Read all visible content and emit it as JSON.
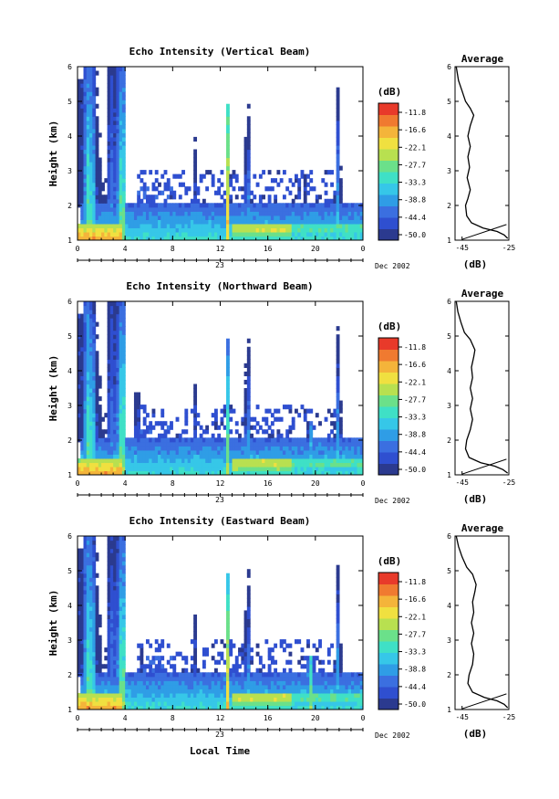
{
  "chart_data": [
    {
      "type": "heatmap",
      "title": "Echo Intensity (Vertical Beam)",
      "xlabel": "",
      "ylabel": "Height (km)",
      "x_ticks": [
        "0",
        "4",
        "8",
        "12",
        "16",
        "20",
        "0"
      ],
      "y_ticks": [
        "1",
        "2",
        "3",
        "4",
        "5",
        "6"
      ],
      "xlim": [
        0,
        24
      ],
      "ylim": [
        1,
        6
      ],
      "date_day": "23",
      "date_label": "Dec 2002",
      "colorbar": {
        "unit": "(dB)",
        "ticks": [
          "-11.8",
          "-16.6",
          "-22.1",
          "-27.7",
          "-33.3",
          "-38.8",
          "-44.4",
          "-50.0"
        ]
      },
      "profile": {
        "title": "Average",
        "xlabel": "(dB)",
        "x_ticks": [
          "-45",
          "-25"
        ],
        "y_ticks": [
          "1",
          "2",
          "3",
          "4",
          "5",
          "6"
        ],
        "xlim": [
          -48,
          -25
        ],
        "points": [
          {
            "x": -25.5,
            "y": 1.05
          },
          {
            "x": -27,
            "y": 1.15
          },
          {
            "x": -30,
            "y": 1.25
          },
          {
            "x": -36,
            "y": 1.35
          },
          {
            "x": -41,
            "y": 1.5
          },
          {
            "x": -43,
            "y": 1.7
          },
          {
            "x": -43.5,
            "y": 2.0
          },
          {
            "x": -42.5,
            "y": 2.2
          },
          {
            "x": -41.5,
            "y": 2.45
          },
          {
            "x": -42.8,
            "y": 2.8
          },
          {
            "x": -41.8,
            "y": 3.1
          },
          {
            "x": -42.5,
            "y": 3.4
          },
          {
            "x": -41.5,
            "y": 3.7
          },
          {
            "x": -42.5,
            "y": 4.0
          },
          {
            "x": -41.5,
            "y": 4.3
          },
          {
            "x": -40.0,
            "y": 4.6
          },
          {
            "x": -41.5,
            "y": 4.8
          },
          {
            "x": -43.5,
            "y": 5.0
          },
          {
            "x": -45,
            "y": 5.3
          },
          {
            "x": -46.5,
            "y": 5.6
          },
          {
            "x": -47.5,
            "y": 6.0
          }
        ]
      }
    },
    {
      "type": "heatmap",
      "title": "Echo Intensity (Northward Beam)",
      "xlabel": "",
      "ylabel": "Height (km)",
      "x_ticks": [
        "0",
        "4",
        "8",
        "12",
        "16",
        "20",
        "0"
      ],
      "y_ticks": [
        "1",
        "2",
        "3",
        "4",
        "5",
        "6"
      ],
      "xlim": [
        0,
        24
      ],
      "ylim": [
        1,
        6
      ],
      "date_day": "23",
      "date_label": "Dec 2002",
      "colorbar": {
        "unit": "(dB)",
        "ticks": [
          "-11.8",
          "-16.6",
          "-22.1",
          "-27.7",
          "-33.3",
          "-38.8",
          "-44.4",
          "-50.0"
        ]
      },
      "profile": {
        "title": "Average",
        "xlabel": "(dB)",
        "x_ticks": [
          "-45",
          "-25"
        ],
        "y_ticks": [
          "1",
          "2",
          "3",
          "4",
          "5",
          "6"
        ],
        "xlim": [
          -48,
          -25
        ],
        "points": [
          {
            "x": -25.5,
            "y": 1.05
          },
          {
            "x": -27.5,
            "y": 1.15
          },
          {
            "x": -31,
            "y": 1.25
          },
          {
            "x": -37,
            "y": 1.35
          },
          {
            "x": -42,
            "y": 1.5
          },
          {
            "x": -43.5,
            "y": 1.75
          },
          {
            "x": -43,
            "y": 2.0
          },
          {
            "x": -41.5,
            "y": 2.3
          },
          {
            "x": -40.5,
            "y": 2.6
          },
          {
            "x": -41.5,
            "y": 2.9
          },
          {
            "x": -40.5,
            "y": 3.2
          },
          {
            "x": -41.5,
            "y": 3.5
          },
          {
            "x": -40.5,
            "y": 3.8
          },
          {
            "x": -41.0,
            "y": 4.1
          },
          {
            "x": -40.0,
            "y": 4.4
          },
          {
            "x": -39.5,
            "y": 4.6
          },
          {
            "x": -41.5,
            "y": 4.9
          },
          {
            "x": -44,
            "y": 5.1
          },
          {
            "x": -45.5,
            "y": 5.4
          },
          {
            "x": -46.8,
            "y": 5.7
          },
          {
            "x": -47.5,
            "y": 6.0
          }
        ]
      }
    },
    {
      "type": "heatmap",
      "title": "Echo Intensity (Eastward Beam)",
      "xlabel": "Local Time",
      "ylabel": "Height (km)",
      "x_ticks": [
        "0",
        "4",
        "8",
        "12",
        "16",
        "20",
        "0"
      ],
      "y_ticks": [
        "1",
        "2",
        "3",
        "4",
        "5",
        "6"
      ],
      "xlim": [
        0,
        24
      ],
      "ylim": [
        1,
        6
      ],
      "date_day": "23",
      "date_label": "Dec 2002",
      "colorbar": {
        "unit": "(dB)",
        "ticks": [
          "-11.8",
          "-16.6",
          "-22.1",
          "-27.7",
          "-33.3",
          "-38.8",
          "-44.4",
          "-50.0"
        ]
      },
      "profile": {
        "title": "Average",
        "xlabel": "(dB)",
        "x_ticks": [
          "-45",
          "-25"
        ],
        "y_ticks": [
          "1",
          "2",
          "3",
          "4",
          "5",
          "6"
        ],
        "xlim": [
          -48,
          -25
        ],
        "points": [
          {
            "x": -25.5,
            "y": 1.05
          },
          {
            "x": -27,
            "y": 1.15
          },
          {
            "x": -30,
            "y": 1.25
          },
          {
            "x": -35.5,
            "y": 1.35
          },
          {
            "x": -40.5,
            "y": 1.5
          },
          {
            "x": -42.5,
            "y": 1.75
          },
          {
            "x": -42,
            "y": 2.0
          },
          {
            "x": -40.5,
            "y": 2.3
          },
          {
            "x": -40.0,
            "y": 2.6
          },
          {
            "x": -41.0,
            "y": 2.9
          },
          {
            "x": -40.0,
            "y": 3.2
          },
          {
            "x": -41.0,
            "y": 3.5
          },
          {
            "x": -40.0,
            "y": 3.8
          },
          {
            "x": -40.5,
            "y": 4.1
          },
          {
            "x": -39.5,
            "y": 4.4
          },
          {
            "x": -39.0,
            "y": 4.6
          },
          {
            "x": -40.5,
            "y": 4.9
          },
          {
            "x": -43,
            "y": 5.1
          },
          {
            "x": -45,
            "y": 5.4
          },
          {
            "x": -46.5,
            "y": 5.7
          },
          {
            "x": -47.5,
            "y": 6.0
          }
        ]
      }
    }
  ],
  "colors": {
    "scale": [
      "#2b3a8f",
      "#2f4fd0",
      "#3b6fe0",
      "#2f9de6",
      "#36c7e8",
      "#3fe0c6",
      "#6be08a",
      "#b8e050",
      "#f0e040",
      "#f4b43a",
      "#f07a30",
      "#e83a2a"
    ]
  }
}
